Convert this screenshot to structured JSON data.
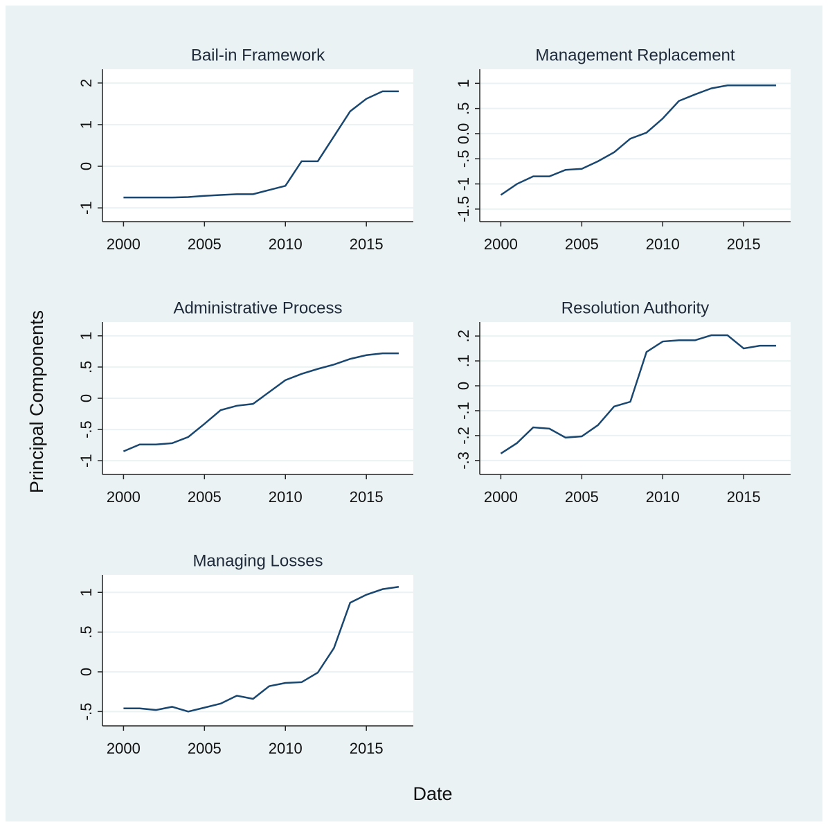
{
  "ylabel": "Principal Components",
  "xlabel": "Date",
  "chart_data": [
    {
      "type": "line",
      "title": "Bail-in Framework",
      "x": [
        2000,
        2001,
        2002,
        2003,
        2004,
        2005,
        2006,
        2007,
        2008,
        2009,
        2010,
        2011,
        2012,
        2013,
        2014,
        2015,
        2016,
        2017
      ],
      "values": [
        -0.75,
        -0.75,
        -0.75,
        -0.75,
        -0.74,
        -0.71,
        -0.69,
        -0.67,
        -0.67,
        -0.57,
        -0.47,
        0.12,
        0.12,
        0.72,
        1.32,
        1.62,
        1.8,
        1.8
      ],
      "color": "#1a476f",
      "xlim": [
        1998.7,
        2017.9
      ],
      "xticks": [
        2000,
        2005,
        2010,
        2015
      ],
      "ylim": [
        -1.33,
        2.33
      ],
      "yticks": [
        -1,
        0,
        1,
        2
      ],
      "grid": true
    },
    {
      "type": "line",
      "title": "Management Replacement",
      "x": [
        2000,
        2001,
        2002,
        2003,
        2004,
        2005,
        2006,
        2007,
        2008,
        2009,
        2010,
        2011,
        2012,
        2013,
        2014,
        2015,
        2016,
        2017
      ],
      "values": [
        -1.22,
        -1.0,
        -0.85,
        -0.85,
        -0.72,
        -0.7,
        -0.55,
        -0.37,
        -0.1,
        0.02,
        0.3,
        0.65,
        0.78,
        0.9,
        0.96,
        0.96,
        0.96,
        0.96
      ],
      "color": "#1a476f",
      "xlim": [
        1998.7,
        2017.9
      ],
      "xticks": [
        2000,
        2005,
        2010,
        2015
      ],
      "ylim": [
        -1.75,
        1.28
      ],
      "yticks": [
        -1.5,
        -1,
        {
          "value": -0.5,
          "label": "-.5"
        },
        {
          "value": 0,
          "label": "0.0"
        },
        {
          "value": 0.5,
          "label": ".5"
        },
        1
      ],
      "grid": true
    },
    {
      "type": "line",
      "title": "Administrative Process",
      "x": [
        2000,
        2001,
        2002,
        2003,
        2004,
        2005,
        2006,
        2007,
        2008,
        2009,
        2010,
        2011,
        2012,
        2013,
        2014,
        2015,
        2016,
        2017
      ],
      "values": [
        -0.85,
        -0.74,
        -0.74,
        -0.72,
        -0.62,
        -0.41,
        -0.19,
        -0.12,
        -0.09,
        0.1,
        0.29,
        0.39,
        0.47,
        0.54,
        0.63,
        0.69,
        0.72,
        0.72
      ],
      "color": "#1a476f",
      "xlim": [
        1998.7,
        2017.9
      ],
      "xticks": [
        2000,
        2005,
        2010,
        2015
      ],
      "ylim": [
        -1.22,
        1.22
      ],
      "yticks": [
        -1,
        {
          "value": -0.5,
          "label": "-.5"
        },
        0,
        {
          "value": 0.5,
          "label": ".5"
        },
        1
      ],
      "grid": true
    },
    {
      "type": "line",
      "title": "Resolution Authority",
      "x": [
        2000,
        2001,
        2002,
        2003,
        2004,
        2005,
        2006,
        2007,
        2008,
        2009,
        2010,
        2011,
        2012,
        2013,
        2014,
        2015,
        2016,
        2017
      ],
      "values": [
        -0.272,
        -0.23,
        -0.167,
        -0.172,
        -0.208,
        -0.203,
        -0.158,
        -0.083,
        -0.064,
        0.136,
        0.178,
        0.183,
        0.183,
        0.203,
        0.203,
        0.15,
        0.161,
        0.161
      ],
      "color": "#1a476f",
      "xlim": [
        1998.7,
        2017.9
      ],
      "xticks": [
        2000,
        2005,
        2010,
        2015
      ],
      "ylim": [
        -0.356,
        0.256
      ],
      "yticks": [
        {
          "value": -0.3,
          "label": "-.3"
        },
        {
          "value": -0.2,
          "label": "-.2"
        },
        {
          "value": -0.1,
          "label": "-.1"
        },
        0,
        {
          "value": 0.1,
          "label": ".1"
        },
        {
          "value": 0.2,
          "label": ".2"
        }
      ],
      "grid": true
    },
    {
      "type": "line",
      "title": "Managing Losses",
      "x": [
        2000,
        2001,
        2002,
        2003,
        2004,
        2005,
        2006,
        2007,
        2008,
        2009,
        2010,
        2011,
        2012,
        2013,
        2014,
        2015,
        2016,
        2017
      ],
      "values": [
        -0.46,
        -0.46,
        -0.48,
        -0.44,
        -0.5,
        -0.45,
        -0.4,
        -0.3,
        -0.34,
        -0.18,
        -0.14,
        -0.13,
        -0.01,
        0.3,
        0.87,
        0.97,
        1.04,
        1.07
      ],
      "color": "#1a476f",
      "xlim": [
        1998.7,
        2017.9
      ],
      "xticks": [
        2000,
        2005,
        2010,
        2015
      ],
      "ylim": [
        -0.68,
        1.22
      ],
      "yticks": [
        {
          "value": -0.5,
          "label": "-.5"
        },
        0,
        {
          "value": 0.5,
          "label": ".5"
        },
        1
      ],
      "grid": true
    }
  ]
}
